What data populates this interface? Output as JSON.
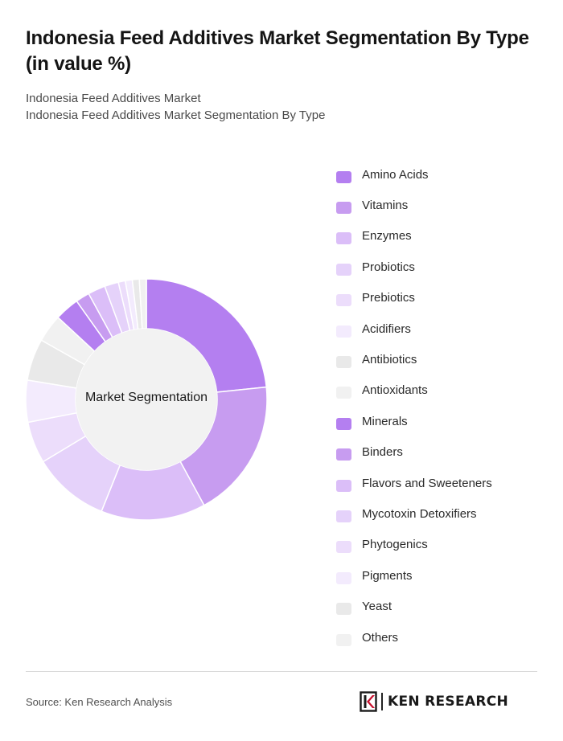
{
  "title": "Indonesia Feed Additives Market Segmentation By Type (in value %)",
  "subtitle_line1": "Indonesia Feed Additives Market",
  "subtitle_line2": "Indonesia Feed Additives Market Segmentation By Type",
  "center_label": "Market Segmentation",
  "source": "Source: Ken Research Analysis",
  "logo_text": "KEN RESEARCH",
  "chart_data": {
    "type": "pie",
    "categories": [
      "Amino Acids",
      "Vitamins",
      "Enzymes",
      "Probiotics",
      "Prebiotics",
      "Acidifiers",
      "Antibiotics",
      "Antioxidants",
      "Minerals",
      "Binders",
      "Flavors and Sweeteners",
      "Mycotoxin Detoxifiers",
      "Phytogenics",
      "Pigments",
      "Yeast",
      "Others"
    ],
    "values": [
      25,
      20,
      15,
      11,
      6,
      6,
      6,
      4,
      3.5,
      2,
      2.5,
      2,
      1,
      1,
      1,
      1
    ],
    "colors": [
      "#b47ff0",
      "#c79cf0",
      "#dbbef8",
      "#e5d2fa",
      "#ecddfb",
      "#f3ebfd",
      "#e9e9e9",
      "#f1f1f1",
      "#b47ff0",
      "#c79cf0",
      "#dbbef8",
      "#e5d2fa",
      "#ecddfb",
      "#f3ebfd",
      "#e9e9e9",
      "#f1f1f1"
    ],
    "donut": true,
    "center_color": "#f2f2f2",
    "legend_position": "right"
  }
}
